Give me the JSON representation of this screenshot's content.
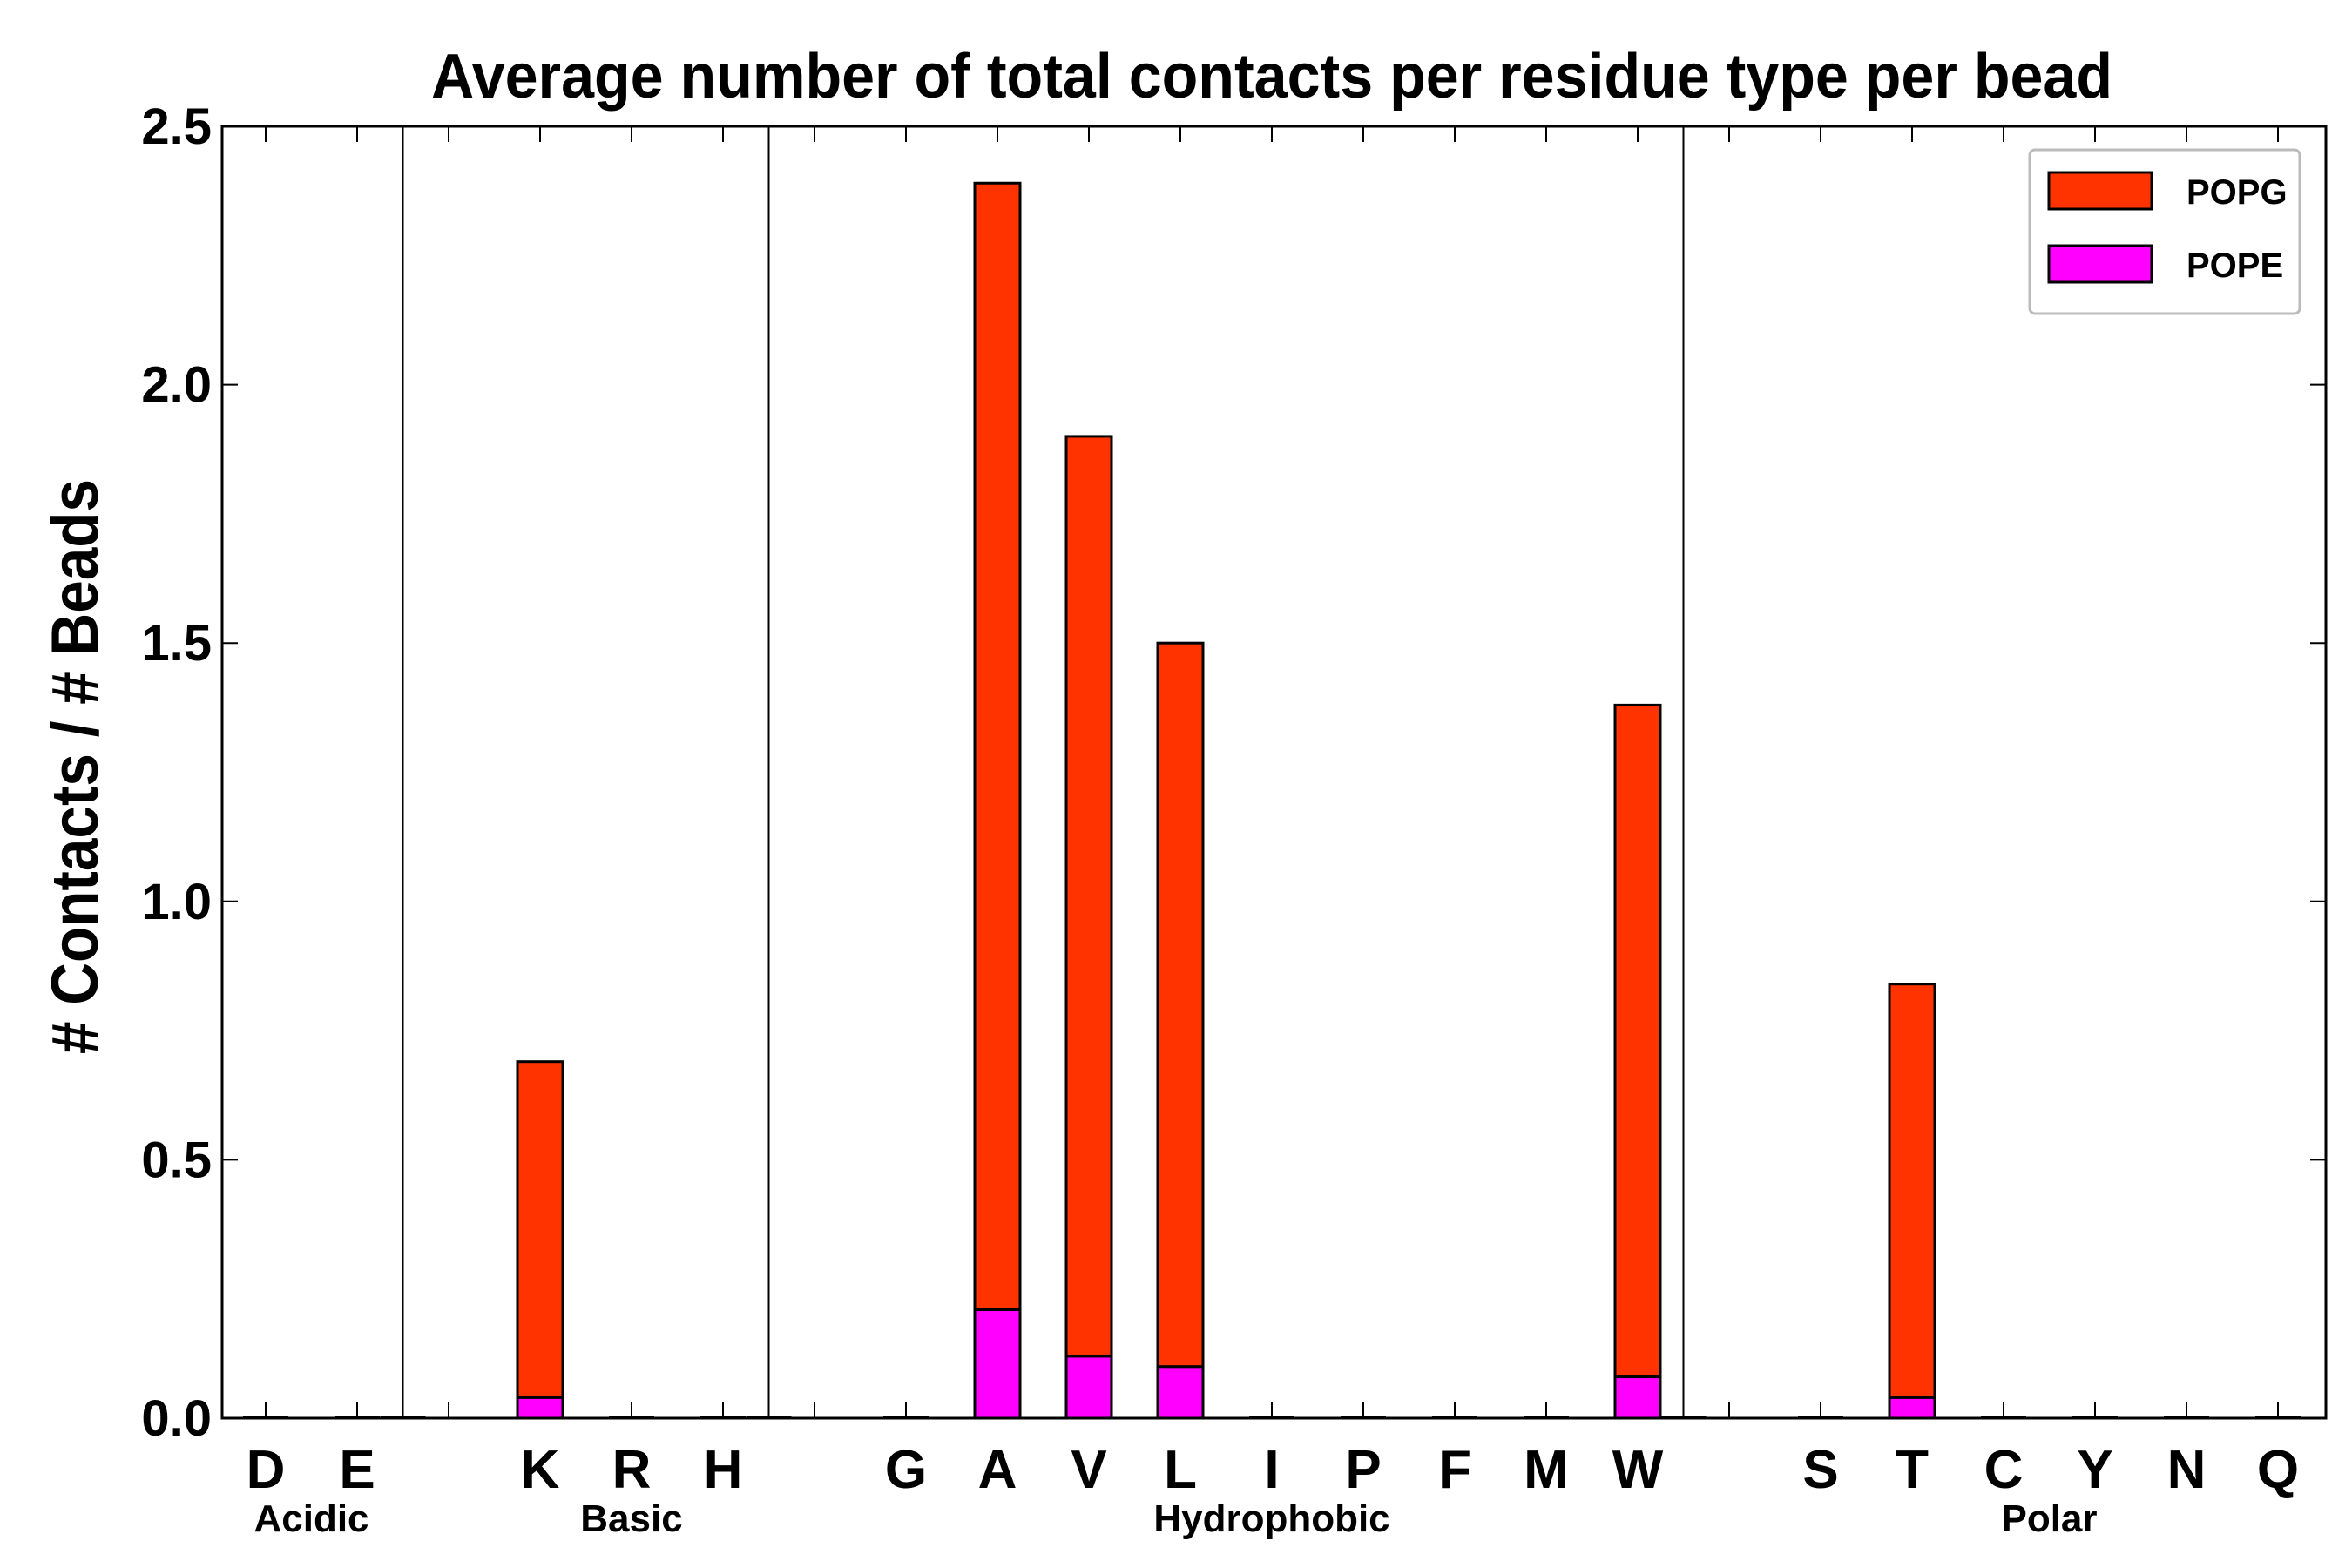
{
  "chart_data": {
    "type": "bar",
    "stacked": true,
    "title": "Average number of total contacts per residue type per bead",
    "xlabel": "",
    "ylabel": "# Contacts / # Beads",
    "ylim": [
      0,
      2.5
    ],
    "yticks": [
      "0.0",
      "0.5",
      "1.0",
      "1.5",
      "2.0",
      "2.5"
    ],
    "grid": false,
    "legend_position": "top-right",
    "categories": [
      "D",
      "E",
      "K",
      "R",
      "H",
      "G",
      "A",
      "V",
      "L",
      "I",
      "P",
      "F",
      "M",
      "W",
      "S",
      "T",
      "C",
      "Y",
      "N",
      "Q"
    ],
    "groups": [
      {
        "name": "Acidic",
        "members": [
          "D",
          "E"
        ]
      },
      {
        "name": "Basic",
        "members": [
          "K",
          "R",
          "H"
        ]
      },
      {
        "name": "Hydrophobic",
        "members": [
          "G",
          "A",
          "V",
          "L",
          "I",
          "P",
          "F",
          "M",
          "W"
        ]
      },
      {
        "name": "Polar",
        "members": [
          "S",
          "T",
          "C",
          "Y",
          "N",
          "Q"
        ]
      }
    ],
    "series": [
      {
        "name": "POPE",
        "color": "#ff00ff",
        "values": [
          0,
          0,
          0.04,
          0,
          0,
          0,
          0.21,
          0.12,
          0.1,
          0,
          0,
          0,
          0,
          0.08,
          0,
          0.04,
          0,
          0,
          0,
          0
        ]
      },
      {
        "name": "POPG",
        "color": "#ff3300",
        "values": [
          0,
          0,
          0.65,
          0,
          0,
          0,
          2.18,
          1.78,
          1.4,
          0,
          0,
          0,
          0,
          1.3,
          0,
          0.8,
          0,
          0,
          0,
          0
        ]
      }
    ]
  }
}
